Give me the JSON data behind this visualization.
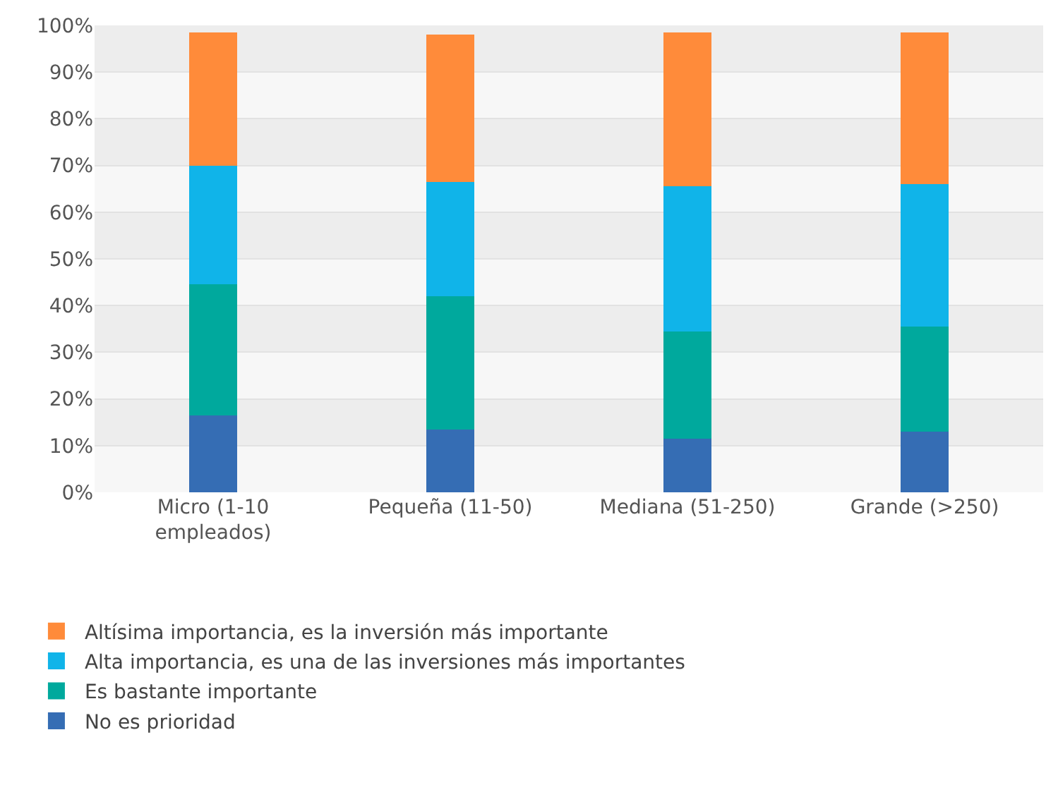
{
  "chart_data": {
    "type": "bar",
    "stacked": true,
    "categories": [
      "Micro (1-10 empleados)",
      "Pequeña (11-50)",
      "Mediana (51-250)",
      "Grande (>250)"
    ],
    "series": [
      {
        "name": "No es prioridad",
        "color": "#356db4",
        "values": [
          16.5,
          13.5,
          11.5,
          13
        ]
      },
      {
        "name": "Es bastante importante",
        "color": "#00a99d",
        "values": [
          28,
          28.5,
          23,
          22.5
        ]
      },
      {
        "name": "Alta importancia, es una de las inversiones más importantes",
        "color": "#10b4e9",
        "values": [
          25.5,
          24.5,
          31,
          30.5
        ]
      },
      {
        "name": "Altísima importancia, es la inversión más importante",
        "color": "#ff8b3a",
        "values": [
          28.5,
          31.5,
          33,
          32.5
        ]
      }
    ],
    "ylim": [
      0,
      100
    ],
    "yticks": [
      {
        "value": 0,
        "label": "0%"
      },
      {
        "value": 10,
        "label": "10%"
      },
      {
        "value": 20,
        "label": "20%"
      },
      {
        "value": 30,
        "label": "30%"
      },
      {
        "value": 40,
        "label": "40%"
      },
      {
        "value": 50,
        "label": "50%"
      },
      {
        "value": 60,
        "label": "60%"
      },
      {
        "value": 70,
        "label": "70%"
      },
      {
        "value": 80,
        "label": "80%"
      },
      {
        "value": 90,
        "label": "90%"
      },
      {
        "value": 100,
        "label": "100%"
      }
    ],
    "grid": "y",
    "legend": "bottom"
  }
}
